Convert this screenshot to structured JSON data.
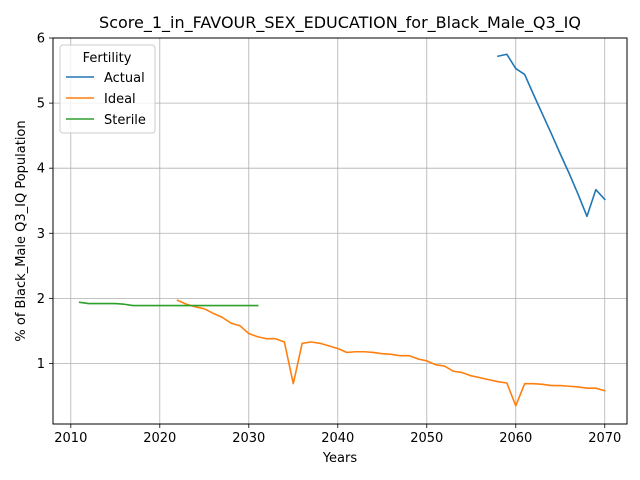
{
  "chart_data": {
    "type": "line",
    "title": "Score_1_in_FAVOUR_SEX_EDUCATION_for_Black_Male_Q3_IQ",
    "xlabel": "Years",
    "ylabel": "% of Black_Male Q3_IQ Population",
    "xlim": [
      2008,
      2072.5
    ],
    "ylim": [
      0.07,
      6.0
    ],
    "xticks": [
      2010,
      2020,
      2030,
      2040,
      2050,
      2060,
      2070
    ],
    "yticks": [
      1,
      2,
      3,
      4,
      5,
      6
    ],
    "grid": true,
    "legend": {
      "title": "Fertility",
      "placement": "top-left",
      "entries": [
        "Actual",
        "Ideal",
        "Sterile"
      ]
    },
    "series": [
      {
        "name": "Actual",
        "color": "#1f77b4",
        "x": [
          2058,
          2059,
          2060,
          2061,
          2062,
          2063,
          2064,
          2065,
          2066,
          2067,
          2068,
          2069,
          2070
        ],
        "y": [
          5.72,
          5.75,
          5.53,
          5.44,
          5.13,
          4.83,
          4.53,
          4.22,
          3.92,
          3.6,
          3.26,
          3.67,
          3.52
        ]
      },
      {
        "name": "Ideal",
        "color": "#ff7f0e",
        "x": [
          2022,
          2023,
          2024,
          2025,
          2026,
          2027,
          2028,
          2029,
          2030,
          2031,
          2032,
          2033,
          2034,
          2035,
          2036,
          2037,
          2038,
          2039,
          2040,
          2041,
          2042,
          2043,
          2044,
          2045,
          2046,
          2047,
          2048,
          2049,
          2050,
          2051,
          2052,
          2053,
          2054,
          2055,
          2056,
          2057,
          2058,
          2059,
          2060,
          2061,
          2062,
          2063,
          2064,
          2065,
          2066,
          2067,
          2068,
          2069,
          2070
        ],
        "y": [
          1.97,
          1.91,
          1.87,
          1.84,
          1.77,
          1.71,
          1.62,
          1.58,
          1.46,
          1.41,
          1.38,
          1.38,
          1.33,
          0.69,
          1.31,
          1.33,
          1.31,
          1.27,
          1.23,
          1.17,
          1.18,
          1.18,
          1.17,
          1.15,
          1.14,
          1.12,
          1.12,
          1.07,
          1.04,
          0.98,
          0.96,
          0.88,
          0.86,
          0.81,
          0.78,
          0.75,
          0.72,
          0.7,
          0.35,
          0.69,
          0.69,
          0.68,
          0.66,
          0.66,
          0.65,
          0.64,
          0.62,
          0.62,
          0.58
        ]
      },
      {
        "name": "Sterile",
        "color": "#2ca02c",
        "x": [
          2011,
          2012,
          2013,
          2014,
          2015,
          2016,
          2017,
          2018,
          2019,
          2020,
          2021,
          2022,
          2023,
          2024,
          2025,
          2026,
          2027,
          2028,
          2029,
          2030,
          2031
        ],
        "y": [
          1.94,
          1.92,
          1.92,
          1.92,
          1.92,
          1.91,
          1.89,
          1.89,
          1.89,
          1.89,
          1.89,
          1.89,
          1.89,
          1.89,
          1.89,
          1.89,
          1.89,
          1.89,
          1.89,
          1.89,
          1.89
        ]
      }
    ]
  }
}
